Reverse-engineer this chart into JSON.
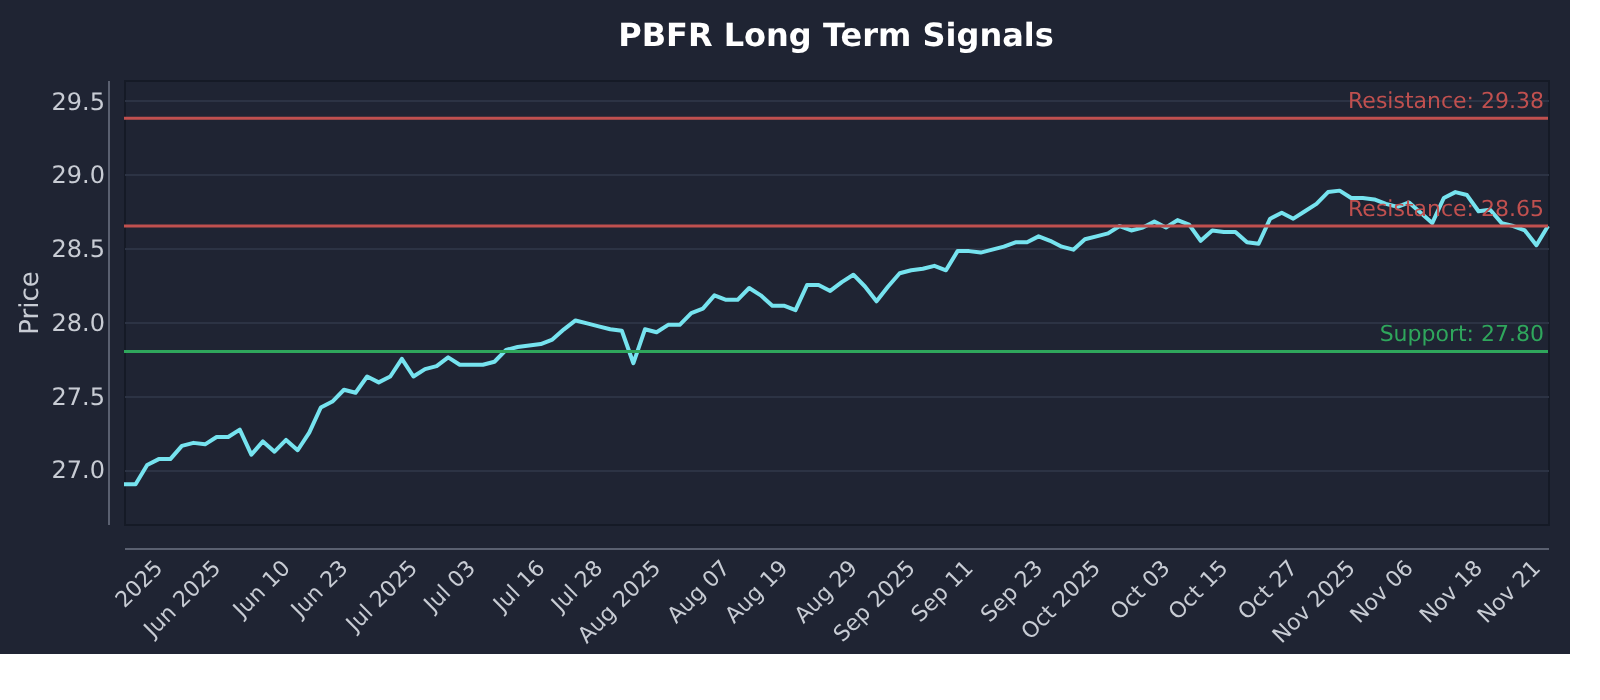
{
  "chart_data": {
    "type": "line",
    "title": "PBFR Long Term Signals",
    "ylabel": "Price",
    "categories": [
      null,
      null,
      null,
      "2025",
      null,
      null,
      null,
      null,
      "Jun 2025",
      null,
      null,
      null,
      null,
      null,
      "Jun 10",
      null,
      null,
      null,
      null,
      "Jun 23",
      null,
      null,
      null,
      null,
      null,
      "Jul 2025",
      null,
      null,
      null,
      null,
      "Jul 03",
      null,
      null,
      null,
      null,
      null,
      "Jul 16",
      null,
      null,
      null,
      null,
      "Jul 28",
      null,
      null,
      null,
      null,
      "Aug 2025",
      null,
      null,
      null,
      null,
      null,
      "Aug 07",
      null,
      null,
      null,
      null,
      "Aug 19",
      null,
      null,
      null,
      null,
      null,
      "Aug 29",
      null,
      null,
      null,
      null,
      "Sep 2025",
      null,
      null,
      null,
      null,
      "Sep 11",
      null,
      null,
      null,
      null,
      null,
      "Sep 23",
      null,
      null,
      null,
      null,
      "Oct 2025",
      null,
      null,
      null,
      null,
      null,
      "Oct 03",
      null,
      null,
      null,
      null,
      "Oct 15",
      null,
      null,
      null,
      null,
      null,
      "Oct 27",
      null,
      null,
      null,
      null,
      "Nov 2025",
      null,
      null,
      null,
      null,
      "Nov 06",
      null,
      null,
      null,
      null,
      null,
      "Nov 18",
      null,
      null,
      null,
      null,
      "Nov 21",
      null
    ],
    "series": [
      {
        "color": "#76e3ef",
        "values": [
          26.9,
          26.9,
          27.03,
          27.07,
          27.07,
          27.16,
          27.18,
          27.17,
          27.22,
          27.22,
          27.27,
          27.1,
          27.19,
          27.12,
          27.2,
          27.13,
          27.25,
          27.42,
          27.46,
          27.54,
          27.52,
          27.63,
          27.59,
          27.63,
          27.75,
          27.63,
          27.68,
          27.7,
          27.76,
          27.71,
          27.71,
          27.71,
          27.73,
          27.81,
          27.83,
          27.84,
          27.85,
          27.88,
          27.95,
          28.01,
          27.99,
          27.97,
          27.95,
          27.94,
          27.72,
          27.95,
          27.93,
          27.98,
          27.98,
          28.06,
          28.09,
          28.18,
          28.15,
          28.15,
          28.23,
          28.18,
          28.11,
          28.11,
          28.08,
          28.25,
          28.25,
          28.21,
          28.27,
          28.32,
          28.24,
          28.14,
          28.24,
          28.33,
          28.35,
          28.36,
          28.38,
          28.35,
          28.48,
          28.48,
          28.47,
          28.49,
          28.51,
          28.54,
          28.54,
          28.58,
          28.55,
          28.51,
          28.49,
          28.56,
          28.58,
          28.6,
          28.65,
          28.62,
          28.64,
          28.68,
          28.64,
          28.69,
          28.66,
          28.55,
          28.62,
          28.61,
          28.61,
          28.54,
          28.53,
          28.7,
          28.74,
          28.7,
          28.75,
          28.8,
          28.88,
          28.89,
          28.84,
          28.84,
          28.83,
          28.8,
          28.78,
          28.81,
          28.74,
          28.67,
          28.84,
          28.88,
          28.86,
          28.75,
          28.76,
          28.67,
          28.65,
          28.62,
          28.52,
          28.65
        ]
      }
    ],
    "ylim": [
      26.63,
      29.64
    ],
    "yticks": [
      {
        "value": 27,
        "label": "27.0"
      },
      27.5,
      {
        "value": 28,
        "label": "28.0"
      },
      28.5,
      {
        "value": 29,
        "label": "29.0"
      },
      29.5
    ],
    "ref_lines": [
      {
        "axis": "y",
        "value": 29.38,
        "label": "Resistance: 29.38",
        "color": "#c0504f"
      },
      {
        "axis": "y",
        "value": 28.65,
        "label": "Resistance: 28.65",
        "color": "#c0504f"
      },
      {
        "axis": "y",
        "value": 27.8,
        "label": "Support: 27.80",
        "color": "#2fa65c"
      }
    ],
    "grid": "y",
    "marker": "none",
    "line_style": "solid"
  }
}
